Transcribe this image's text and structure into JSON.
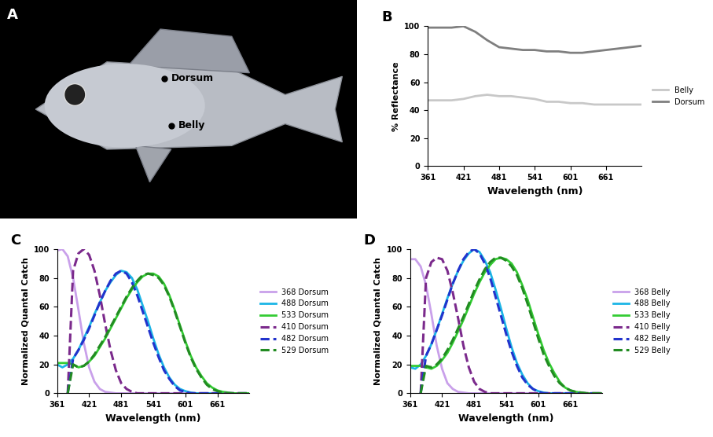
{
  "photo": {
    "title": "A",
    "points": [
      {
        "label": "Dorsum"
      },
      {
        "label": "Belly"
      }
    ]
  },
  "chart_data": [
    {
      "title": "B",
      "type": "line",
      "xlabel": "Wavelength (nm)",
      "ylabel": "% Reflectance",
      "xlim": [
        361,
        721
      ],
      "xticks": [
        361,
        421,
        481,
        541,
        601,
        661
      ],
      "ylim": [
        0,
        100
      ],
      "yticks": [
        0,
        20,
        40,
        60,
        80,
        100
      ],
      "legend": "right",
      "x": [
        361,
        381,
        401,
        421,
        441,
        461,
        481,
        501,
        521,
        541,
        561,
        581,
        601,
        621,
        641,
        661,
        681,
        701,
        721
      ],
      "series": [
        {
          "name": "Belly",
          "color": "#c8c8c8",
          "line_style": "solid",
          "values": [
            47,
            47,
            47,
            48,
            50,
            51,
            50,
            50,
            49,
            48,
            46,
            46,
            45,
            45,
            44,
            44,
            44,
            44,
            44
          ]
        },
        {
          "name": "Dorsum",
          "color": "#7f7f7f",
          "line_style": "solid",
          "values": [
            99,
            99,
            99,
            100,
            96,
            90,
            85,
            84,
            83,
            83,
            82,
            82,
            81,
            81,
            82,
            83,
            84,
            85,
            86
          ]
        }
      ]
    },
    {
      "title": "C",
      "type": "line",
      "xlabel": "Wavelength (nm)",
      "ylabel": "Normalized Quantal Catch",
      "xlim": [
        361,
        721
      ],
      "xticks": [
        361,
        421,
        481,
        541,
        601,
        661
      ],
      "ylim": [
        0,
        100
      ],
      "yticks": [
        0,
        20,
        40,
        60,
        80,
        100
      ],
      "legend": "right",
      "x": [
        361,
        371,
        381,
        391,
        401,
        411,
        421,
        431,
        441,
        451,
        461,
        471,
        481,
        491,
        501,
        511,
        521,
        531,
        541,
        551,
        561,
        571,
        581,
        591,
        601,
        611,
        621,
        631,
        641,
        651,
        661,
        671,
        681,
        691,
        701,
        711,
        721
      ],
      "series": [
        {
          "name": "368 Dorsum",
          "color": "#c9a0ea",
          "line_style": "solid",
          "values": [
            99,
            100,
            95,
            80,
            58,
            35,
            18,
            8,
            3,
            1,
            0.5,
            0,
            0,
            0,
            0,
            0,
            0,
            0,
            0,
            0,
            0,
            0,
            0,
            0,
            0,
            0,
            0,
            0,
            0,
            0,
            0,
            0,
            0,
            0,
            0,
            0,
            0
          ]
        },
        {
          "name": "488 Dorsum",
          "color": "#1cb5e6",
          "line_style": "solid",
          "values": [
            20,
            18,
            20,
            24,
            30,
            38,
            46,
            55,
            63,
            71,
            77,
            82,
            85,
            84,
            80,
            72,
            61,
            50,
            38,
            27,
            18,
            11,
            6,
            3,
            1.5,
            0.5,
            0,
            0,
            0,
            0,
            0,
            0,
            0,
            0,
            0,
            0,
            0
          ]
        },
        {
          "name": "533 Dorsum",
          "color": "#33cc33",
          "line_style": "solid",
          "values": [
            21,
            21,
            21,
            20,
            18,
            19,
            22,
            26,
            32,
            38,
            45,
            52,
            59,
            66,
            72,
            77,
            81,
            83,
            83,
            81,
            76,
            68,
            58,
            47,
            36,
            26,
            18,
            12,
            7,
            4,
            2,
            1,
            0.5,
            0,
            0,
            0,
            0
          ]
        },
        {
          "name": "410 Dorsum",
          "color": "#7b2a8c",
          "line_style": "dashed",
          "values": [
            null,
            null,
            0,
            85,
            97,
            100,
            96,
            85,
            68,
            48,
            30,
            16,
            7,
            3,
            1,
            0,
            0,
            0,
            0,
            0,
            0,
            0,
            0,
            0,
            0,
            0,
            0,
            0,
            0,
            0,
            0,
            0,
            0,
            0,
            0,
            0,
            0
          ]
        },
        {
          "name": "482 Dorsum",
          "color": "#2233cc",
          "line_style": "dashed",
          "values": [
            null,
            null,
            0,
            24,
            30,
            37,
            45,
            54,
            63,
            71,
            78,
            83,
            85,
            83,
            77,
            68,
            57,
            46,
            35,
            25,
            16,
            10,
            5,
            2,
            1,
            0,
            0,
            0,
            0,
            0,
            0,
            0,
            0,
            0,
            0,
            0,
            0
          ]
        },
        {
          "name": "529 Dorsum",
          "color": "#228b22",
          "line_style": "dashed",
          "values": [
            null,
            null,
            0,
            20,
            18,
            19,
            22,
            27,
            33,
            39,
            46,
            53,
            60,
            67,
            73,
            78,
            82,
            83,
            82,
            80,
            75,
            67,
            57,
            46,
            35,
            25,
            17,
            11,
            6,
            3,
            1.5,
            0.5,
            0,
            0,
            0,
            0,
            0
          ]
        }
      ]
    },
    {
      "title": "D",
      "type": "line",
      "xlabel": "Wavelength (nm)",
      "ylabel": "Normalized Quantal Catch",
      "xlim": [
        361,
        721
      ],
      "xticks": [
        361,
        421,
        481,
        541,
        601,
        661
      ],
      "ylim": [
        0,
        100
      ],
      "yticks": [
        0,
        20,
        40,
        60,
        80,
        100
      ],
      "legend": "right",
      "x": [
        361,
        371,
        381,
        391,
        401,
        411,
        421,
        431,
        441,
        451,
        461,
        471,
        481,
        491,
        501,
        511,
        521,
        531,
        541,
        551,
        561,
        571,
        581,
        591,
        601,
        611,
        621,
        631,
        641,
        651,
        661,
        671,
        681,
        691,
        701,
        711,
        721
      ],
      "series": [
        {
          "name": "368 Belly",
          "color": "#c9a0ea",
          "line_style": "solid",
          "values": [
            93,
            93,
            88,
            75,
            55,
            33,
            17,
            7,
            3,
            1,
            0.5,
            0,
            0,
            0,
            0,
            0,
            0,
            0,
            0,
            0,
            0,
            0,
            0,
            0,
            0,
            0,
            0,
            0,
            0,
            0,
            0,
            0,
            0,
            0,
            0,
            0,
            0
          ]
        },
        {
          "name": "488 Belly",
          "color": "#1cb5e6",
          "line_style": "solid",
          "values": [
            18,
            17,
            20,
            26,
            34,
            44,
            55,
            66,
            76,
            85,
            92,
            97,
            100,
            98,
            92,
            84,
            72,
            59,
            45,
            32,
            21,
            13,
            7,
            3,
            1.5,
            0.5,
            0,
            0,
            0,
            0,
            0,
            0,
            0,
            0,
            0,
            0,
            0
          ]
        },
        {
          "name": "533 Belly",
          "color": "#33cc33",
          "line_style": "solid",
          "values": [
            19,
            19,
            19,
            18,
            17,
            19,
            23,
            28,
            35,
            43,
            51,
            60,
            69,
            77,
            84,
            89,
            93,
            94,
            93,
            90,
            84,
            75,
            65,
            53,
            41,
            30,
            21,
            14,
            8,
            4,
            2,
            1,
            0.5,
            0,
            0,
            0,
            0
          ]
        },
        {
          "name": "410 Belly",
          "color": "#7b2a8c",
          "line_style": "dashed",
          "values": [
            null,
            null,
            0,
            80,
            91,
            94,
            93,
            85,
            70,
            52,
            33,
            18,
            8,
            3,
            1,
            0,
            0,
            0,
            0,
            0,
            0,
            0,
            0,
            0,
            0,
            0,
            0,
            0,
            0,
            0,
            0,
            0,
            0,
            0,
            0,
            0,
            0
          ]
        },
        {
          "name": "482 Belly",
          "color": "#2233cc",
          "line_style": "dashed",
          "values": [
            null,
            null,
            0,
            26,
            34,
            44,
            54,
            65,
            76,
            85,
            93,
            98,
            100,
            97,
            90,
            80,
            67,
            54,
            41,
            29,
            19,
            11,
            6,
            3,
            1,
            0,
            0,
            0,
            0,
            0,
            0,
            0,
            0,
            0,
            0,
            0,
            0
          ]
        },
        {
          "name": "529 Belly",
          "color": "#228b22",
          "line_style": "dashed",
          "values": [
            null,
            null,
            0,
            19,
            18,
            20,
            24,
            30,
            37,
            45,
            53,
            62,
            71,
            79,
            86,
            91,
            94,
            94,
            92,
            88,
            82,
            73,
            62,
            50,
            38,
            27,
            19,
            12,
            7,
            4,
            2,
            1,
            0.5,
            0,
            0,
            0,
            0
          ]
        }
      ]
    }
  ]
}
